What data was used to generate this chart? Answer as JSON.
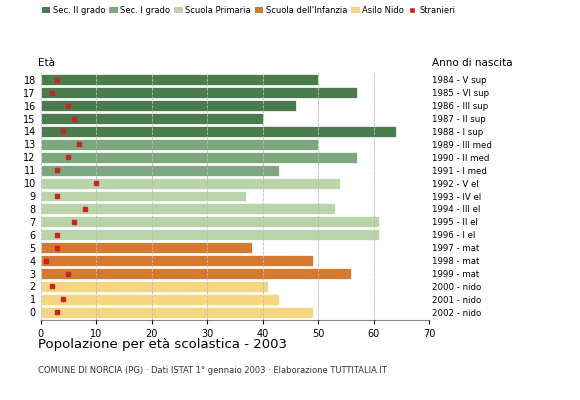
{
  "ages": [
    18,
    17,
    16,
    15,
    14,
    13,
    12,
    11,
    10,
    9,
    8,
    7,
    6,
    5,
    4,
    3,
    2,
    1,
    0
  ],
  "bar_values": [
    50,
    57,
    46,
    40,
    64,
    50,
    57,
    43,
    54,
    37,
    53,
    61,
    61,
    38,
    49,
    56,
    41,
    43,
    49
  ],
  "stranieri_values": [
    3,
    2,
    5,
    6,
    4,
    7,
    5,
    3,
    10,
    3,
    8,
    6,
    3,
    3,
    1,
    5,
    2,
    4,
    3
  ],
  "year_labels": [
    "1984 - V sup",
    "1985 - VI sup",
    "1986 - III sup",
    "1987 - II sup",
    "1988 - I sup",
    "1989 - III med",
    "1990 - II med",
    "1991 - I med",
    "1992 - V el",
    "1993 - IV el",
    "1994 - III el",
    "1995 - II el",
    "1996 - I el",
    "1997 - mat",
    "1998 - mat",
    "1999 - mat",
    "2000 - nido",
    "2001 - nido",
    "2002 - nido"
  ],
  "bar_colors": [
    "#4a7c4e",
    "#4a7c4e",
    "#4a7c4e",
    "#4a7c4e",
    "#4a7c4e",
    "#7da87d",
    "#7da87d",
    "#7da87d",
    "#b8d4a8",
    "#b8d4a8",
    "#b8d4a8",
    "#b8d4a8",
    "#b8d4a8",
    "#d47a30",
    "#d47a30",
    "#d47a30",
    "#f5d580",
    "#f5d580",
    "#f5d580"
  ],
  "legend_colors": [
    "#4a7c4e",
    "#7da87d",
    "#b8d4a8",
    "#d47a30",
    "#f5d580",
    "#cc2222"
  ],
  "legend_labels": [
    "Sec. II grado",
    "Sec. I grado",
    "Scuola Primaria",
    "Scuola dell'Infanzia",
    "Asilo Nido",
    "Stranieri"
  ],
  "title": "Popolazione per età scolastica - 2003",
  "subtitle": "COMUNE DI NORCIA (PG) · Dati ISTAT 1° gennaio 2003 · Elaborazione TUTTITALIA.IT",
  "eta_label": "Età",
  "anno_label": "Anno di nascita",
  "xlim": [
    0,
    70
  ],
  "xticks": [
    0,
    10,
    20,
    30,
    40,
    50,
    60,
    70
  ],
  "bar_height": 0.85,
  "stranieri_color": "#cc2222",
  "background_color": "#ffffff",
  "grid_color": "#bbbbbb"
}
